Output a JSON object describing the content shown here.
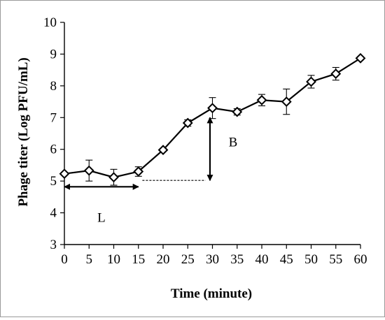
{
  "chart_data": {
    "type": "line",
    "title": "",
    "xlabel": "Time (minute)",
    "ylabel": "Phage titer (Log PFU/mL)",
    "xlim": [
      0,
      60
    ],
    "ylim": [
      3,
      10
    ],
    "x_ticks": [
      0,
      5,
      10,
      15,
      20,
      25,
      30,
      35,
      40,
      45,
      50,
      55,
      60
    ],
    "y_ticks": [
      3,
      4,
      5,
      6,
      7,
      8,
      9,
      10
    ],
    "grid": false,
    "legend": "none",
    "series": [
      {
        "marker": "diamond-open",
        "color": "#000000",
        "x": [
          0,
          5,
          10,
          15,
          20,
          25,
          30,
          35,
          40,
          45,
          50,
          55,
          60
        ],
        "y": [
          5.23,
          5.33,
          5.12,
          5.3,
          5.98,
          6.83,
          7.3,
          7.18,
          7.55,
          7.5,
          8.13,
          8.38,
          8.87
        ],
        "error": [
          0.0,
          0.33,
          0.25,
          0.15,
          0.03,
          0.1,
          0.33,
          0.1,
          0.18,
          0.4,
          0.2,
          0.2,
          0.05
        ]
      }
    ],
    "annotations": [
      {
        "label": "L",
        "type": "double-arrow",
        "x_from": 0,
        "x_to": 15,
        "y": 4.82
      },
      {
        "label": "B",
        "type": "double-arrow",
        "x": 29.5,
        "y_from": 5.02,
        "y_to": 7.0
      },
      {
        "type": "dashed-line",
        "x_from": 15.8,
        "x_to": 28.6,
        "y": 5.02
      }
    ]
  }
}
